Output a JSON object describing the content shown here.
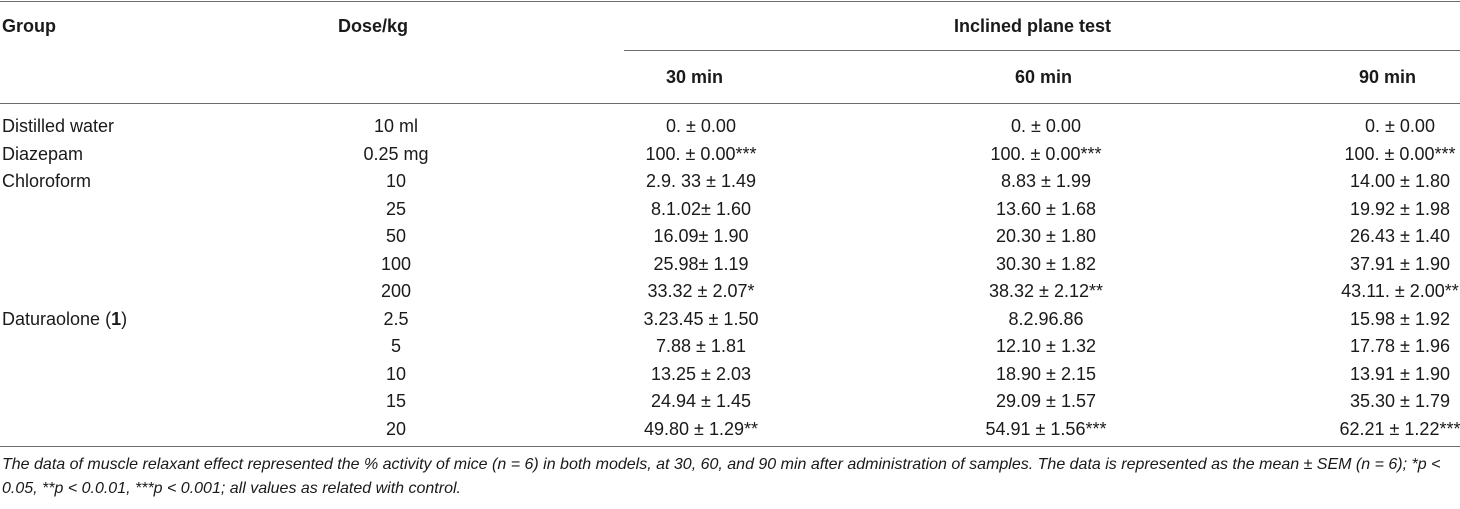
{
  "table": {
    "headers": {
      "group": "Group",
      "dose": "Dose/kg",
      "inclined": "Inclined plane test",
      "t30": "30 min",
      "t60": "60 min",
      "t90": "90 min"
    },
    "rows": [
      {
        "group": "Distilled water",
        "dose": "10 ml",
        "t30": "0. ± 0.00",
        "t60": "0. ± 0.00",
        "t90": "0. ± 0.00"
      },
      {
        "group": "Diazepam",
        "dose": "0.25 mg",
        "t30": "100. ± 0.00***",
        "t60": "100. ± 0.00***",
        "t90": "100. ± 0.00***"
      },
      {
        "group": "Chloroform",
        "dose": "10",
        "t30": "2.9. 33 ± 1.49",
        "t60": "8.83 ± 1.99",
        "t90": "14.00 ± 1.80"
      },
      {
        "group": "",
        "dose": "25",
        "t30": "8.1.02± 1.60",
        "t60": "13.60 ± 1.68",
        "t90": "19.92 ± 1.98"
      },
      {
        "group": "",
        "dose": "50",
        "t30": "16.09± 1.90",
        "t60": "20.30 ± 1.80",
        "t90": "26.43 ± 1.40"
      },
      {
        "group": "",
        "dose": "100",
        "t30": "25.98± 1.19",
        "t60": "30.30 ± 1.82",
        "t90": "37.91 ± 1.90"
      },
      {
        "group": "",
        "dose": "200",
        "t30": "33.32 ± 2.07*",
        "t60": "38.32 ± 2.12**",
        "t90": "43.11. ± 2.00**"
      },
      {
        "group": "Daturaolone (",
        "group_bold": "1",
        "group_tail": ")",
        "dose": "2.5",
        "t30": "3.23.45 ± 1.50",
        "t60": "8.2.96.86",
        "t90": "15.98 ± 1.92"
      },
      {
        "group": "",
        "dose": "5",
        "t30": "7.88 ± 1.81",
        "t60": "12.10 ± 1.32",
        "t90": "17.78 ± 1.96"
      },
      {
        "group": "",
        "dose": "10",
        "t30": "13.25 ± 2.03",
        "t60": "18.90 ± 2.15",
        "t90": "13.91 ± 1.90"
      },
      {
        "group": "",
        "dose": "15",
        "t30": "24.94 ± 1.45",
        "t60": "29.09 ± 1.57",
        "t90": "35.30 ± 1.79"
      },
      {
        "group": "",
        "dose": "20",
        "t30": "49.80 ± 1.29**",
        "t60": "54.91 ± 1.56***",
        "t90": "62.21 ± 1.22***"
      }
    ]
  },
  "footnote": "The data of muscle relaxant effect represented the % activity of mice (n = 6) in both models, at 30, 60, and 90 min after administration of samples. The data is represented as the mean ± SEM (n = 6); *p < 0.05, **p < 0.0.01, ***p < 0.001; all values as related with control."
}
